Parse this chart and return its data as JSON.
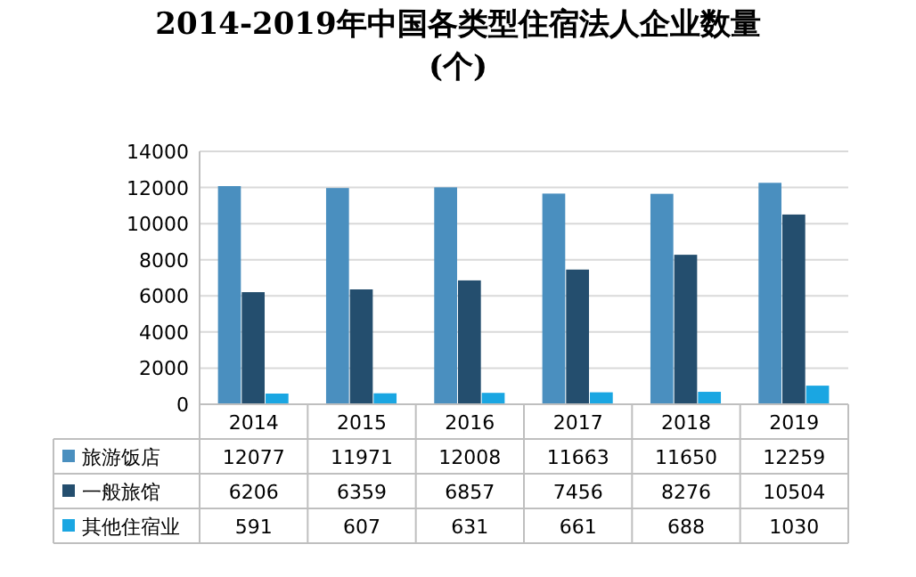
{
  "chart_data": {
    "type": "bar",
    "title": "2014-2019年中国各类型住宿法人企业数量(个)",
    "categories": [
      "2014",
      "2015",
      "2016",
      "2017",
      "2018",
      "2019"
    ],
    "series": [
      {
        "name": "旅游饭店",
        "color": "#4a8fbf",
        "values": [
          12077,
          11971,
          12008,
          11663,
          11650,
          12259
        ]
      },
      {
        "name": "一般旅馆",
        "color": "#244e6e",
        "values": [
          6206,
          6359,
          6857,
          7456,
          8276,
          10504
        ]
      },
      {
        "name": "其他住宿业",
        "color": "#1aa6e2",
        "values": [
          591,
          607,
          631,
          661,
          688,
          1030
        ]
      }
    ],
    "ylim": [
      0,
      14000
    ],
    "yticks": [
      0,
      2000,
      4000,
      6000,
      8000,
      10000,
      12000,
      14000
    ],
    "grid": "y",
    "legend": "bottom",
    "data_labels": true
  }
}
